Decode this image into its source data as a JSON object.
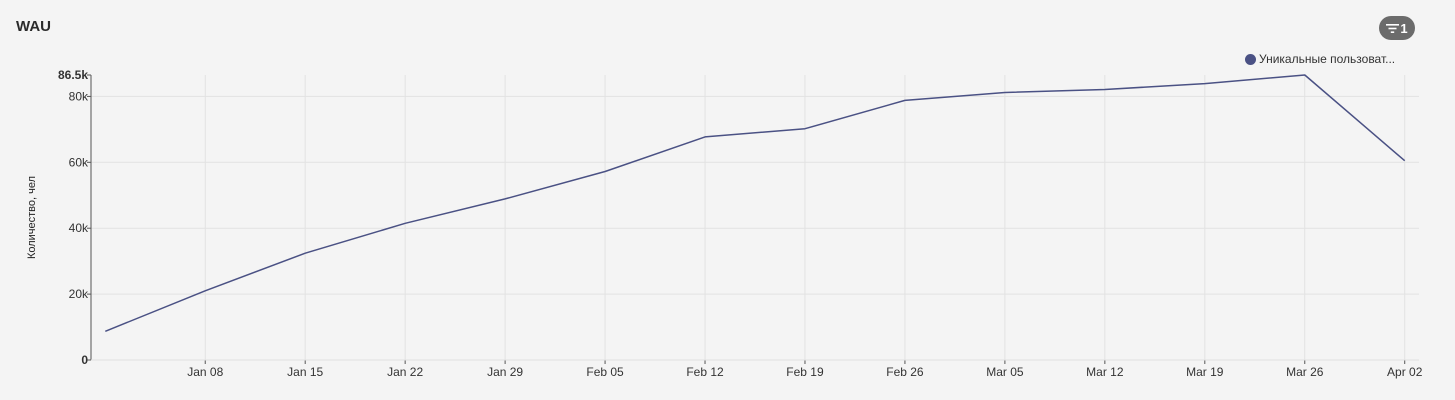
{
  "title": "WAU",
  "filter_badge": {
    "icon": "filter-icon",
    "count": "1"
  },
  "legend": {
    "label": "Уникальные пользоват...",
    "color": "#4a5184"
  },
  "chart_data": {
    "type": "line",
    "ylabel": "Количество, чел",
    "ylim": [
      0,
      86500
    ],
    "y_ticks": [
      {
        "value": 0,
        "label": "0"
      },
      {
        "value": 20000,
        "label": "20k"
      },
      {
        "value": 40000,
        "label": "40k"
      },
      {
        "value": 60000,
        "label": "60k"
      },
      {
        "value": 80000,
        "label": "80k"
      },
      {
        "value": 86500,
        "label": "86.5k",
        "max": true
      }
    ],
    "x_ticks": [
      "Jan 08",
      "Jan 15",
      "Jan 22",
      "Jan 29",
      "Feb 05",
      "Feb 12",
      "Feb 19",
      "Feb 26",
      "Mar 05",
      "Mar 12",
      "Mar 19",
      "Mar 26",
      "Apr 02"
    ],
    "x_range": [
      "2023-12-31",
      "2024-04-02"
    ],
    "grid": true,
    "legend_position": "top-right",
    "series": [
      {
        "name": "Уникальные пользоват...",
        "color": "#4a5184",
        "points": [
          {
            "x": "2024-01-01",
            "y": 8700
          },
          {
            "x": "2024-01-08",
            "y": 21000
          },
          {
            "x": "2024-01-15",
            "y": 32400
          },
          {
            "x": "2024-01-22",
            "y": 41500
          },
          {
            "x": "2024-01-29",
            "y": 48900
          },
          {
            "x": "2024-02-05",
            "y": 57200
          },
          {
            "x": "2024-02-12",
            "y": 67700
          },
          {
            "x": "2024-02-19",
            "y": 70200
          },
          {
            "x": "2024-02-26",
            "y": 78800
          },
          {
            "x": "2024-03-04",
            "y": 81200
          },
          {
            "x": "2024-03-11",
            "y": 82100
          },
          {
            "x": "2024-03-18",
            "y": 83900
          },
          {
            "x": "2024-03-25",
            "y": 86500
          },
          {
            "x": "2024-04-01",
            "y": 60500
          }
        ]
      }
    ]
  }
}
